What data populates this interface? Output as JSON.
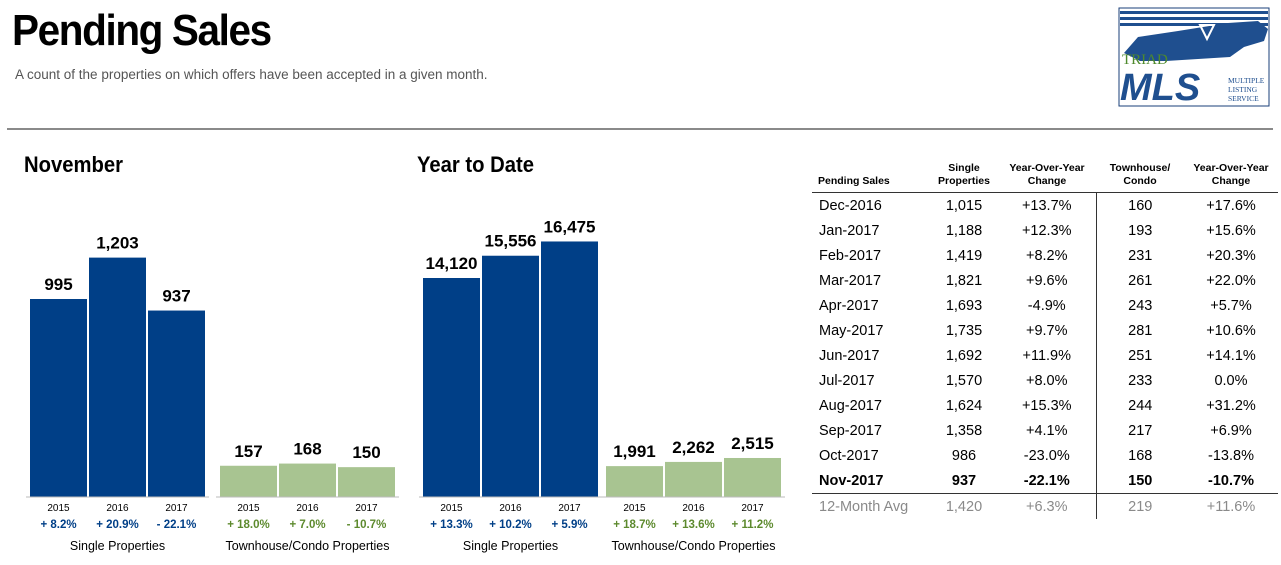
{
  "header": {
    "title": "Pending Sales",
    "subtitle": "A count of the properties on which offers have been accepted in a given month."
  },
  "logo": {
    "word1": "TRIAD",
    "word2": "MLS",
    "tagline": [
      "MULTIPLE",
      "LISTING",
      "SERVICE"
    ]
  },
  "colors": {
    "single": "#003f87",
    "townhouse": "#a8c491",
    "single_change": "#003f87",
    "townhouse_change": "#5d8a2e"
  },
  "chart_data": [
    {
      "type": "bar",
      "title": "November",
      "groups": [
        {
          "name": "Single Properties",
          "categories": [
            "2015",
            "2016",
            "2017"
          ],
          "values": [
            995,
            1203,
            937
          ],
          "labels": [
            "995",
            "1,203",
            "937"
          ],
          "changes": [
            "+ 8.2%",
            "+ 20.9%",
            "- 22.1%"
          ]
        },
        {
          "name": "Townhouse/Condo Properties",
          "categories": [
            "2015",
            "2016",
            "2017"
          ],
          "values": [
            157,
            168,
            150
          ],
          "labels": [
            "157",
            "168",
            "150"
          ],
          "changes": [
            "+ 18.0%",
            "+ 7.0%",
            "- 10.7%"
          ]
        }
      ]
    },
    {
      "type": "bar",
      "title": "Year to Date",
      "groups": [
        {
          "name": "Single Properties",
          "categories": [
            "2015",
            "2016",
            "2017"
          ],
          "values": [
            14120,
            15556,
            16475
          ],
          "labels": [
            "14,120",
            "15,556",
            "16,475"
          ],
          "changes": [
            "+ 13.3%",
            "+ 10.2%",
            "+ 5.9%"
          ]
        },
        {
          "name": "Townhouse/Condo Properties",
          "categories": [
            "2015",
            "2016",
            "2017"
          ],
          "values": [
            1991,
            2262,
            2515
          ],
          "labels": [
            "1,991",
            "2,262",
            "2,515"
          ],
          "changes": [
            "+ 18.7%",
            "+ 13.6%",
            "+ 11.2%"
          ]
        }
      ]
    },
    {
      "type": "table",
      "columns": [
        "Pending Sales",
        "Single Properties",
        "Year-Over-Year Change",
        "Townhouse/ Condo",
        "Year-Over-Year Change"
      ],
      "rows": [
        [
          "Dec-2016",
          "1,015",
          "+13.7%",
          "160",
          "+17.6%"
        ],
        [
          "Jan-2017",
          "1,188",
          "+12.3%",
          "193",
          "+15.6%"
        ],
        [
          "Feb-2017",
          "1,419",
          "+8.2%",
          "231",
          "+20.3%"
        ],
        [
          "Mar-2017",
          "1,821",
          "+9.6%",
          "261",
          "+22.0%"
        ],
        [
          "Apr-2017",
          "1,693",
          "-4.9%",
          "243",
          "+5.7%"
        ],
        [
          "May-2017",
          "1,735",
          "+9.7%",
          "281",
          "+10.6%"
        ],
        [
          "Jun-2017",
          "1,692",
          "+11.9%",
          "251",
          "+14.1%"
        ],
        [
          "Jul-2017",
          "1,570",
          "+8.0%",
          "233",
          "0.0%"
        ],
        [
          "Aug-2017",
          "1,624",
          "+15.3%",
          "244",
          "+31.2%"
        ],
        [
          "Sep-2017",
          "1,358",
          "+4.1%",
          "217",
          "+6.9%"
        ],
        [
          "Oct-2017",
          "986",
          "-23.0%",
          "168",
          "-13.8%"
        ],
        [
          "Nov-2017",
          "937",
          "-22.1%",
          "150",
          "-10.7%"
        ]
      ],
      "average_row": [
        "12-Month Avg",
        "1,420",
        "+6.3%",
        "219",
        "+11.6%"
      ]
    }
  ]
}
